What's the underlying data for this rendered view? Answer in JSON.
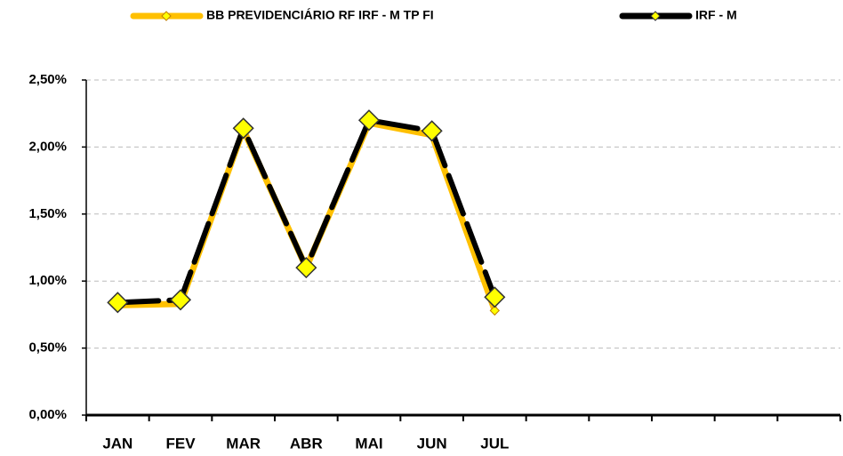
{
  "chart_data": {
    "type": "line",
    "categories": [
      "JAN",
      "FEV",
      "MAR",
      "ABR",
      "MAI",
      "JUN",
      "JUL",
      null,
      null,
      null,
      null,
      null
    ],
    "series": [
      {
        "name": "BB PREVIDENCIÁRIO RF IRF - M TP FI",
        "color": "#FFC000",
        "marker_color": "#FFFF00",
        "values": [
          0.82,
          0.83,
          2.13,
          1.1,
          2.18,
          2.09,
          0.78,
          null,
          null,
          null,
          null,
          null
        ]
      },
      {
        "name": "IRF - M",
        "color": "#000000",
        "marker_color": "#FFFF00",
        "values": [
          0.84,
          0.86,
          2.14,
          1.1,
          2.2,
          2.12,
          0.88,
          null,
          null,
          null,
          null,
          null
        ]
      }
    ],
    "ylim": [
      0,
      2.5
    ],
    "yticks": [
      {
        "value": 0,
        "label": "0,00%"
      },
      {
        "value": 0.5,
        "label": "0,50%"
      },
      {
        "value": 1,
        "label": "1,00%"
      },
      {
        "value": 1.5,
        "label": "1,50%"
      },
      {
        "value": 2,
        "label": "2,00%"
      },
      {
        "value": 2.5,
        "label": "2,50%"
      }
    ],
    "grid": true,
    "legend": "top"
  }
}
